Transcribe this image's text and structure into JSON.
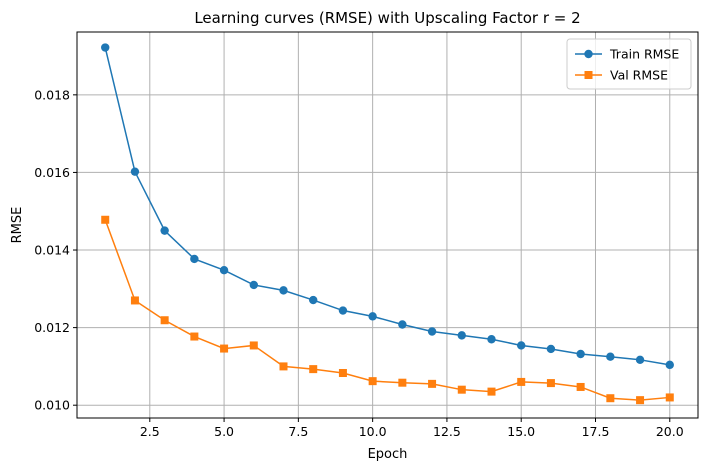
{
  "chart_data": {
    "type": "line",
    "title": "Learning curves (RMSE) with Upscaling Factor r = 2",
    "xlabel": "Epoch",
    "ylabel": "RMSE",
    "xlim": [
      0.05,
      20.95
    ],
    "ylim": [
      0.00967,
      0.01962
    ],
    "x_ticks": [
      2.5,
      5.0,
      7.5,
      10.0,
      12.5,
      15.0,
      17.5,
      20.0
    ],
    "x_tick_labels": [
      "2.5",
      "5.0",
      "7.5",
      "10.0",
      "12.5",
      "15.0",
      "17.5",
      "20.0"
    ],
    "y_ticks": [
      0.01,
      0.012,
      0.014,
      0.016,
      0.018
    ],
    "y_tick_labels": [
      "0.010",
      "0.012",
      "0.014",
      "0.016",
      "0.018"
    ],
    "grid": true,
    "legend_position": "top-right",
    "x": [
      1,
      2,
      3,
      4,
      5,
      6,
      7,
      8,
      9,
      10,
      11,
      12,
      13,
      14,
      15,
      16,
      17,
      18,
      19,
      20
    ],
    "series": [
      {
        "name": "Train RMSE",
        "color": "#1f77b4",
        "marker": "circle",
        "values": [
          0.01922,
          0.01602,
          0.0145,
          0.01377,
          0.01348,
          0.0131,
          0.01296,
          0.01271,
          0.01244,
          0.01229,
          0.01208,
          0.0119,
          0.0118,
          0.0117,
          0.01154,
          0.01145,
          0.01132,
          0.01125,
          0.01117,
          0.01104
        ]
      },
      {
        "name": "Val RMSE",
        "color": "#ff7f0e",
        "marker": "square",
        "values": [
          0.01478,
          0.0127,
          0.01219,
          0.01177,
          0.01146,
          0.01154,
          0.011,
          0.01093,
          0.01083,
          0.01062,
          0.01058,
          0.01055,
          0.0104,
          0.01035,
          0.0106,
          0.01057,
          0.01047,
          0.01018,
          0.01013,
          0.0102
        ]
      }
    ]
  }
}
